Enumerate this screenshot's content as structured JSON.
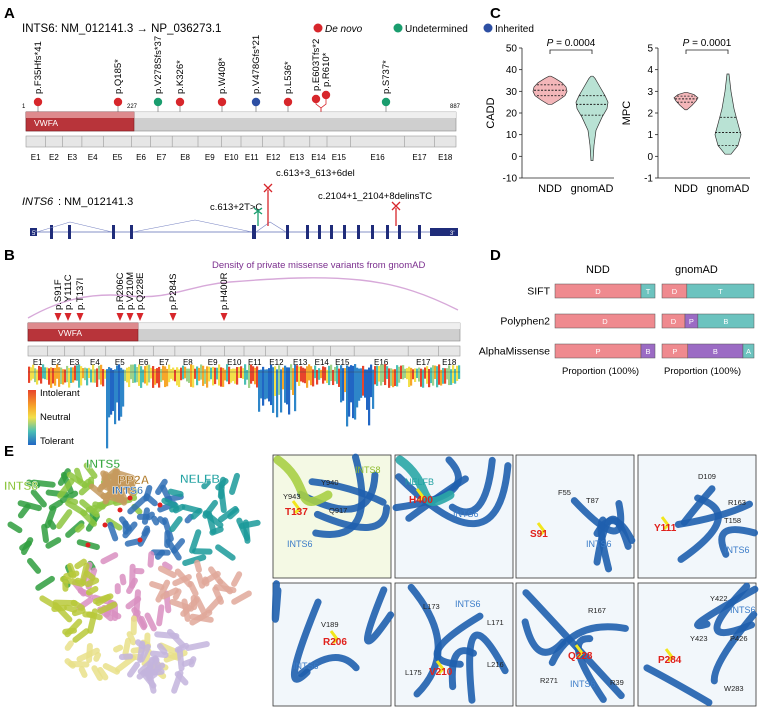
{
  "panels": {
    "A": {
      "letter": "A",
      "title": "INTS6: NM_012141.3 → NP_036273.1",
      "legend": [
        {
          "label": "De novo",
          "color": "#d7262b"
        },
        {
          "label": "Undetermined",
          "color": "#1a9d6e"
        },
        {
          "label": "Inherited",
          "color": "#2d4fa3"
        }
      ],
      "protein_start": "1",
      "protein_end": "887",
      "vwfa_end": "227",
      "domain_label": "VWFA",
      "variants": [
        {
          "label": "p.F35Hfs*41",
          "type": "De novo"
        },
        {
          "label": "p.Q185*",
          "type": "De novo"
        },
        {
          "label": "p.V278Sfs*37",
          "type": "Undetermined"
        },
        {
          "label": "p.K326*",
          "type": "De novo"
        },
        {
          "label": "p.W408*",
          "type": "De novo"
        },
        {
          "label": "p.V478Gfs*21",
          "type": "Inherited"
        },
        {
          "label": "p.L536*",
          "type": "De novo"
        },
        {
          "label": "p.E603Tfs*2",
          "type": "De novo"
        },
        {
          "label": "p.R610*",
          "type": "De novo"
        },
        {
          "label": "p.S737*",
          "type": "Undetermined"
        }
      ],
      "exons": [
        "E1",
        "E2",
        "E3",
        "E4",
        "E5",
        "E6",
        "E7",
        "E8",
        "E9",
        "E10",
        "E11",
        "E12",
        "E13",
        "E14",
        "E15",
        "E16",
        "E17",
        "E18"
      ],
      "transcript_label": "INTS6",
      "transcript_id": ": NM_012141.3",
      "splice_variants": [
        "c.613+2T>C",
        "c.613+3_613+6del",
        "c.2104+1_2104+8delinsTC"
      ],
      "end5": "5'",
      "end3": "3'"
    },
    "B": {
      "letter": "B",
      "density_title": "Density of private missense variants from gnomAD",
      "missense": [
        "p.S91F",
        "p.Y111C",
        "p.T137I",
        "p.R206C",
        "p.V210M",
        "p.Q228E",
        "p.P284S",
        "p.H400R"
      ],
      "domain_label": "VWFA",
      "exons": [
        "E1",
        "E2",
        "E3",
        "E4",
        "E5",
        "E6",
        "E7",
        "E8",
        "E9",
        "E10",
        "E11",
        "E12",
        "E13",
        "E14",
        "E15",
        "E16",
        "E17",
        "E18"
      ],
      "tolerance_legend": [
        "Intolerant",
        "Neutral",
        "Tolerant"
      ]
    },
    "C": {
      "letter": "C",
      "plots": [
        {
          "ylabel": "CADD",
          "p_label": "P",
          "p_value": " = 0.0004",
          "yticks": [
            "-10",
            "0",
            "10",
            "20",
            "30",
            "40",
            "50"
          ],
          "groups": [
            "NDD",
            "gnomAD"
          ]
        },
        {
          "ylabel": "MPC",
          "p_label": "P",
          "p_value": " = 0.0001",
          "yticks": [
            "-1",
            "0",
            "1",
            "2",
            "3",
            "4",
            "5"
          ],
          "groups": [
            "NDD",
            "gnomAD"
          ]
        }
      ]
    },
    "D": {
      "letter": "D",
      "group_ndd": "NDD",
      "group_gnomad": "gnomAD",
      "rows": [
        {
          "tool": "SIFT",
          "ndd": [
            {
              "label": "D",
              "frac": 0.86,
              "color": "#ef8a8f"
            },
            {
              "label": "T",
              "frac": 0.14,
              "color": "#6cc3bf"
            }
          ],
          "gnomad": [
            {
              "label": "D",
              "frac": 0.27,
              "color": "#ef8a8f"
            },
            {
              "label": "T",
              "frac": 0.73,
              "color": "#6cc3bf"
            }
          ]
        },
        {
          "tool": "Polyphen2",
          "ndd": [
            {
              "label": "D",
              "frac": 1.0,
              "color": "#ef8a8f"
            }
          ],
          "gnomad": [
            {
              "label": "D",
              "frac": 0.25,
              "color": "#ef8a8f"
            },
            {
              "label": "P",
              "frac": 0.14,
              "color": "#9b6bc4"
            },
            {
              "label": "B",
              "frac": 0.61,
              "color": "#6cc3bf"
            }
          ]
        },
        {
          "tool": "AlphaMissense",
          "ndd": [
            {
              "label": "P",
              "frac": 0.86,
              "color": "#ef8a8f"
            },
            {
              "label": "B",
              "frac": 0.14,
              "color": "#9b6bc4"
            }
          ],
          "gnomad": [
            {
              "label": "P",
              "frac": 0.28,
              "color": "#ef8a8f"
            },
            {
              "label": "B",
              "frac": 0.6,
              "color": "#9b6bc4"
            },
            {
              "label": "A",
              "frac": 0.12,
              "color": "#6cc3bf"
            }
          ]
        }
      ],
      "axis_label": "Proportion (100%)"
    },
    "E": {
      "letter": "E",
      "complex_labels": [
        "INTS5",
        "PP2A",
        "NELFB",
        "INTS8",
        "INTS6"
      ],
      "details": [
        {
          "residue": "T137",
          "labels": [
            "INTS8",
            "Y940",
            "Y943",
            "Q917",
            "INTS6"
          ],
          "bg": "#f4f9e4"
        },
        {
          "residue": "H400",
          "labels": [
            "NELFB",
            "INTS6"
          ],
          "bg": "#f2f7fb"
        },
        {
          "residue": "S91",
          "labels": [
            "F55",
            "T87",
            "INTS6"
          ],
          "bg": "#f2f7fb"
        },
        {
          "residue": "Y111",
          "labels": [
            "D109",
            "R163",
            "T158",
            "INTS6"
          ],
          "bg": "#f2f7fb"
        },
        {
          "residue": "R206",
          "labels": [
            "V189",
            "INTS6"
          ],
          "bg": "#f2f7fb"
        },
        {
          "residue": "V210",
          "labels": [
            "L173",
            "INTS6",
            "L171",
            "L175",
            "L216"
          ],
          "bg": "#f2f7fb"
        },
        {
          "residue": "Q228",
          "labels": [
            "R167",
            "R271",
            "INTS6",
            "R39"
          ],
          "bg": "#f2f7fb"
        },
        {
          "residue": "P284",
          "labels": [
            "Y422",
            "INTS6",
            "Y423",
            "P426",
            "W283"
          ],
          "bg": "#f2f7fb"
        }
      ]
    }
  }
}
